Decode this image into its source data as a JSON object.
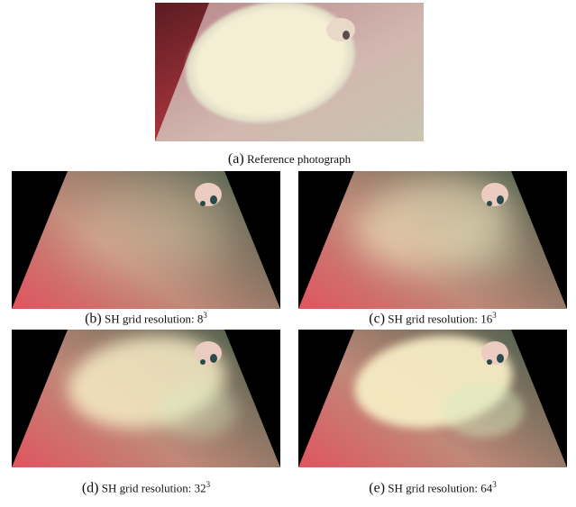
{
  "panels": [
    {
      "label": "(a)",
      "caption": "Reference photograph"
    },
    {
      "label": "(b)",
      "caption": "SH grid resolution:",
      "base": "8",
      "exponent": "3"
    },
    {
      "label": "(c)",
      "caption": "SH grid resolution:",
      "base": "16",
      "exponent": "3"
    },
    {
      "label": "(d)",
      "caption": "SH grid resolution:",
      "base": "32",
      "exponent": "3"
    },
    {
      "label": "(e)",
      "caption": "SH grid resolution:",
      "base": "64",
      "exponent": "3"
    }
  ]
}
